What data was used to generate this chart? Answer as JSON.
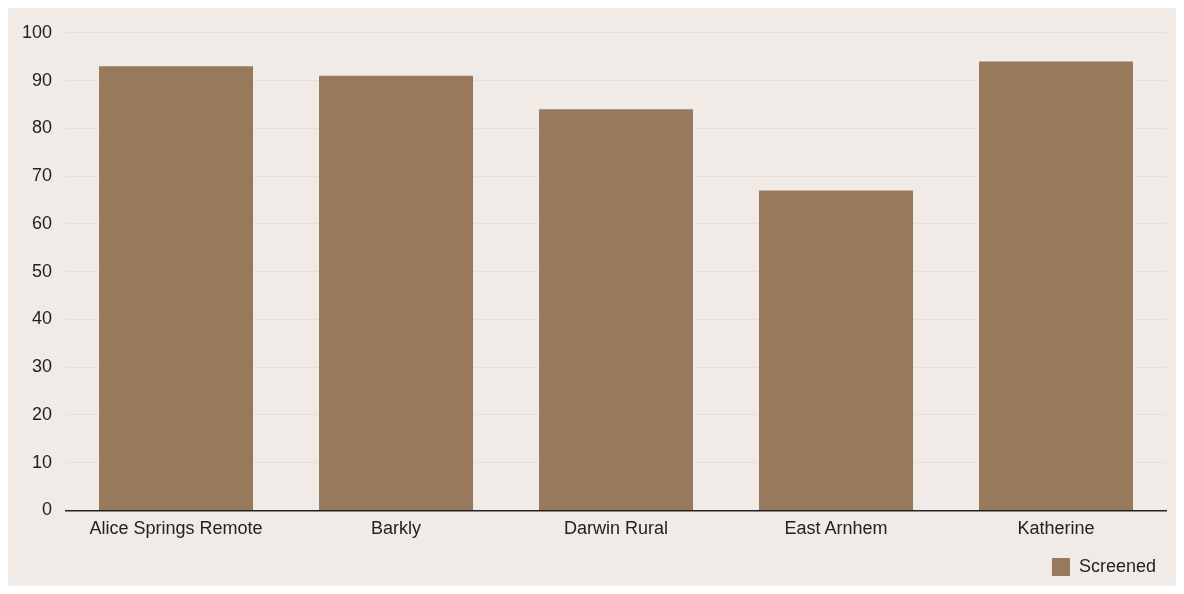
{
  "chart_data": {
    "type": "bar",
    "categories": [
      "Alice Springs Remote",
      "Barkly",
      "Darwin Rural",
      "East Arnhem",
      "Katherine"
    ],
    "series": [
      {
        "name": "Screened",
        "color": "#98795b",
        "values": [
          93,
          91,
          84,
          67,
          94
        ]
      }
    ],
    "ylim": [
      0,
      100
    ],
    "yticks": [
      0,
      10,
      20,
      30,
      40,
      50,
      60,
      70,
      80,
      90,
      100
    ],
    "grid": "y",
    "legend": "bottom right"
  }
}
